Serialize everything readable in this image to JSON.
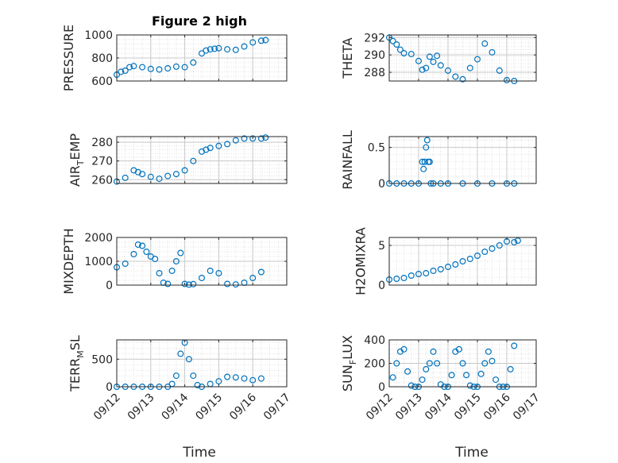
{
  "figure": {
    "title": "Figure 2 high",
    "xlabel_left": "Time",
    "xlabel_right": "Time",
    "xtick_labels": [
      "09/12",
      "09/13",
      "09/14",
      "09/15",
      "09/16",
      "09/17"
    ],
    "marker_color": "#0072bd",
    "grid_color": "#d9d9d9"
  },
  "chart_data": [
    {
      "type": "scatter",
      "ylabel": "PRESSURE",
      "ylim": [
        600,
        1000
      ],
      "yticks": [
        600,
        800,
        1000
      ],
      "grid": true,
      "x": [
        "2017-09-12 00:00",
        "2017-09-12 03:00",
        "2017-09-12 06:00",
        "2017-09-12 09:00",
        "2017-09-12 12:00",
        "2017-09-12 18:00",
        "2017-09-13 00:00",
        "2017-09-13 06:00",
        "2017-09-13 12:00",
        "2017-09-13 18:00",
        "2017-09-14 00:00",
        "2017-09-14 06:00",
        "2017-09-14 12:00",
        "2017-09-14 15:00",
        "2017-09-14 18:00",
        "2017-09-14 21:00",
        "2017-09-15 00:00",
        "2017-09-15 06:00",
        "2017-09-15 12:00",
        "2017-09-15 18:00",
        "2017-09-16 00:00",
        "2017-09-16 06:00",
        "2017-09-16 09:00"
      ],
      "y": [
        655,
        680,
        690,
        720,
        730,
        720,
        705,
        700,
        710,
        725,
        720,
        760,
        840,
        865,
        875,
        880,
        885,
        875,
        870,
        900,
        935,
        950,
        955
      ]
    },
    {
      "type": "scatter",
      "ylabel": "THETA",
      "ylim": [
        287,
        292.3
      ],
      "yticks": [
        288,
        290,
        292
      ],
      "grid": true,
      "x": [
        "2017-09-12 00:00",
        "2017-09-12 03:00",
        "2017-09-12 06:00",
        "2017-09-12 09:00",
        "2017-09-12 12:00",
        "2017-09-12 18:00",
        "2017-09-13 00:00",
        "2017-09-13 03:00",
        "2017-09-13 06:00",
        "2017-09-13 09:00",
        "2017-09-13 12:00",
        "2017-09-13 15:00",
        "2017-09-13 18:00",
        "2017-09-14 00:00",
        "2017-09-14 06:00",
        "2017-09-14 12:00",
        "2017-09-14 18:00",
        "2017-09-15 00:00",
        "2017-09-15 06:00",
        "2017-09-15 12:00",
        "2017-09-15 18:00",
        "2017-09-16 00:00",
        "2017-09-16 06:00"
      ],
      "y": [
        292,
        291.6,
        291.2,
        290.6,
        290.2,
        290.1,
        289.3,
        288.3,
        288.5,
        289.8,
        289.2,
        289.9,
        288.8,
        288.2,
        287.5,
        287.2,
        288.5,
        289.5,
        291.3,
        290.3,
        288.2,
        287.1,
        287
      ]
    },
    {
      "type": "scatter",
      "ylabel": "AIR_TEMP",
      "ylim": [
        258,
        283
      ],
      "yticks": [
        260,
        270,
        280
      ],
      "grid": true,
      "x": [
        "2017-09-12 00:00",
        "2017-09-12 06:00",
        "2017-09-12 12:00",
        "2017-09-12 15:00",
        "2017-09-12 18:00",
        "2017-09-13 00:00",
        "2017-09-13 06:00",
        "2017-09-13 12:00",
        "2017-09-13 18:00",
        "2017-09-14 00:00",
        "2017-09-14 06:00",
        "2017-09-14 12:00",
        "2017-09-14 15:00",
        "2017-09-14 18:00",
        "2017-09-15 00:00",
        "2017-09-15 06:00",
        "2017-09-15 12:00",
        "2017-09-15 18:00",
        "2017-09-16 00:00",
        "2017-09-16 06:00",
        "2017-09-16 09:00"
      ],
      "y": [
        259,
        261,
        265,
        264,
        263,
        261.5,
        260.5,
        262,
        263,
        265,
        270,
        275,
        276,
        277,
        278,
        279,
        281,
        282,
        282,
        282,
        282.5
      ]
    },
    {
      "type": "scatter",
      "ylabel": "RAINFALL",
      "ylim": [
        0,
        0.65
      ],
      "yticks": [
        0,
        0.5
      ],
      "grid": true,
      "x": [
        "2017-09-12 00:00",
        "2017-09-12 06:00",
        "2017-09-12 12:00",
        "2017-09-12 18:00",
        "2017-09-13 00:00",
        "2017-09-13 03:00",
        "2017-09-13 04:00",
        "2017-09-13 05:00",
        "2017-09-13 06:00",
        "2017-09-13 07:00",
        "2017-09-13 08:00",
        "2017-09-13 09:00",
        "2017-09-13 10:00",
        "2017-09-13 12:00",
        "2017-09-13 18:00",
        "2017-09-14 00:00",
        "2017-09-14 12:00",
        "2017-09-15 00:00",
        "2017-09-15 12:00",
        "2017-09-16 00:00",
        "2017-09-16 06:00"
      ],
      "y": [
        0,
        0,
        0,
        0,
        0,
        0.3,
        0.2,
        0.3,
        0.5,
        0.6,
        0.3,
        0.3,
        0,
        0,
        0,
        0,
        0,
        0,
        0,
        0,
        0
      ]
    },
    {
      "type": "scatter",
      "ylabel": "MIXDEPTH",
      "ylim": [
        0,
        2000
      ],
      "yticks": [
        0,
        1000,
        2000
      ],
      "grid": true,
      "x": [
        "2017-09-12 00:00",
        "2017-09-12 06:00",
        "2017-09-12 12:00",
        "2017-09-12 15:00",
        "2017-09-12 18:00",
        "2017-09-12 21:00",
        "2017-09-13 00:00",
        "2017-09-13 03:00",
        "2017-09-13 06:00",
        "2017-09-13 09:00",
        "2017-09-13 12:00",
        "2017-09-13 15:00",
        "2017-09-13 18:00",
        "2017-09-13 21:00",
        "2017-09-14 00:00",
        "2017-09-14 03:00",
        "2017-09-14 06:00",
        "2017-09-14 12:00",
        "2017-09-14 18:00",
        "2017-09-15 00:00",
        "2017-09-15 06:00",
        "2017-09-15 12:00",
        "2017-09-15 18:00",
        "2017-09-16 00:00",
        "2017-09-16 06:00"
      ],
      "y": [
        750,
        900,
        1300,
        1700,
        1650,
        1400,
        1200,
        1100,
        500,
        100,
        50,
        600,
        1000,
        1350,
        50,
        20,
        40,
        300,
        600,
        500,
        50,
        30,
        100,
        300,
        550
      ]
    },
    {
      "type": "scatter",
      "ylabel": "H2OMIXRA",
      "ylim": [
        0,
        6
      ],
      "yticks": [
        0,
        5
      ],
      "grid": true,
      "x": [
        "2017-09-12 00:00",
        "2017-09-12 06:00",
        "2017-09-12 12:00",
        "2017-09-12 18:00",
        "2017-09-13 00:00",
        "2017-09-13 06:00",
        "2017-09-13 12:00",
        "2017-09-13 18:00",
        "2017-09-14 00:00",
        "2017-09-14 06:00",
        "2017-09-14 12:00",
        "2017-09-14 18:00",
        "2017-09-15 00:00",
        "2017-09-15 06:00",
        "2017-09-15 12:00",
        "2017-09-15 18:00",
        "2017-09-16 00:00",
        "2017-09-16 06:00",
        "2017-09-16 09:00"
      ],
      "y": [
        0.7,
        0.8,
        0.9,
        1.2,
        1.4,
        1.5,
        1.8,
        2.0,
        2.3,
        2.6,
        3.0,
        3.3,
        3.7,
        4.2,
        4.6,
        5.0,
        5.5,
        5.4,
        5.6
      ]
    },
    {
      "type": "scatter",
      "ylabel": "TERR_MSL",
      "ylim": [
        0,
        850
      ],
      "yticks": [
        0,
        500
      ],
      "grid": true,
      "x": [
        "2017-09-12 00:00",
        "2017-09-12 06:00",
        "2017-09-12 12:00",
        "2017-09-12 18:00",
        "2017-09-13 00:00",
        "2017-09-13 06:00",
        "2017-09-13 12:00",
        "2017-09-13 15:00",
        "2017-09-13 18:00",
        "2017-09-13 21:00",
        "2017-09-14 00:00",
        "2017-09-14 03:00",
        "2017-09-14 06:00",
        "2017-09-14 09:00",
        "2017-09-14 12:00",
        "2017-09-14 18:00",
        "2017-09-15 00:00",
        "2017-09-15 06:00",
        "2017-09-15 12:00",
        "2017-09-15 18:00",
        "2017-09-16 00:00",
        "2017-09-16 06:00"
      ],
      "y": [
        0,
        0,
        0,
        0,
        0,
        0,
        0,
        50,
        200,
        600,
        800,
        500,
        200,
        30,
        0,
        50,
        100,
        180,
        170,
        150,
        120,
        150
      ]
    },
    {
      "type": "scatter",
      "ylabel": "SUN_FLUX",
      "ylim": [
        0,
        400
      ],
      "yticks": [
        0,
        200,
        400
      ],
      "grid": true,
      "x": [
        "2017-09-12 03:00",
        "2017-09-12 06:00",
        "2017-09-12 09:00",
        "2017-09-12 12:00",
        "2017-09-12 15:00",
        "2017-09-12 18:00",
        "2017-09-12 21:00",
        "2017-09-13 00:00",
        "2017-09-13 03:00",
        "2017-09-13 06:00",
        "2017-09-13 09:00",
        "2017-09-13 12:00",
        "2017-09-13 15:00",
        "2017-09-13 18:00",
        "2017-09-13 21:00",
        "2017-09-14 00:00",
        "2017-09-14 03:00",
        "2017-09-14 06:00",
        "2017-09-14 09:00",
        "2017-09-14 12:00",
        "2017-09-14 15:00",
        "2017-09-14 18:00",
        "2017-09-14 21:00",
        "2017-09-15 00:00",
        "2017-09-15 03:00",
        "2017-09-15 06:00",
        "2017-09-15 09:00",
        "2017-09-15 12:00",
        "2017-09-15 15:00",
        "2017-09-15 18:00",
        "2017-09-15 21:00",
        "2017-09-16 00:00",
        "2017-09-16 03:00",
        "2017-09-16 06:00"
      ],
      "y": [
        80,
        200,
        300,
        320,
        130,
        10,
        0,
        0,
        60,
        150,
        200,
        300,
        200,
        20,
        0,
        0,
        100,
        300,
        320,
        200,
        100,
        10,
        0,
        0,
        110,
        200,
        300,
        220,
        60,
        0,
        0,
        0,
        150,
        350
      ]
    }
  ]
}
